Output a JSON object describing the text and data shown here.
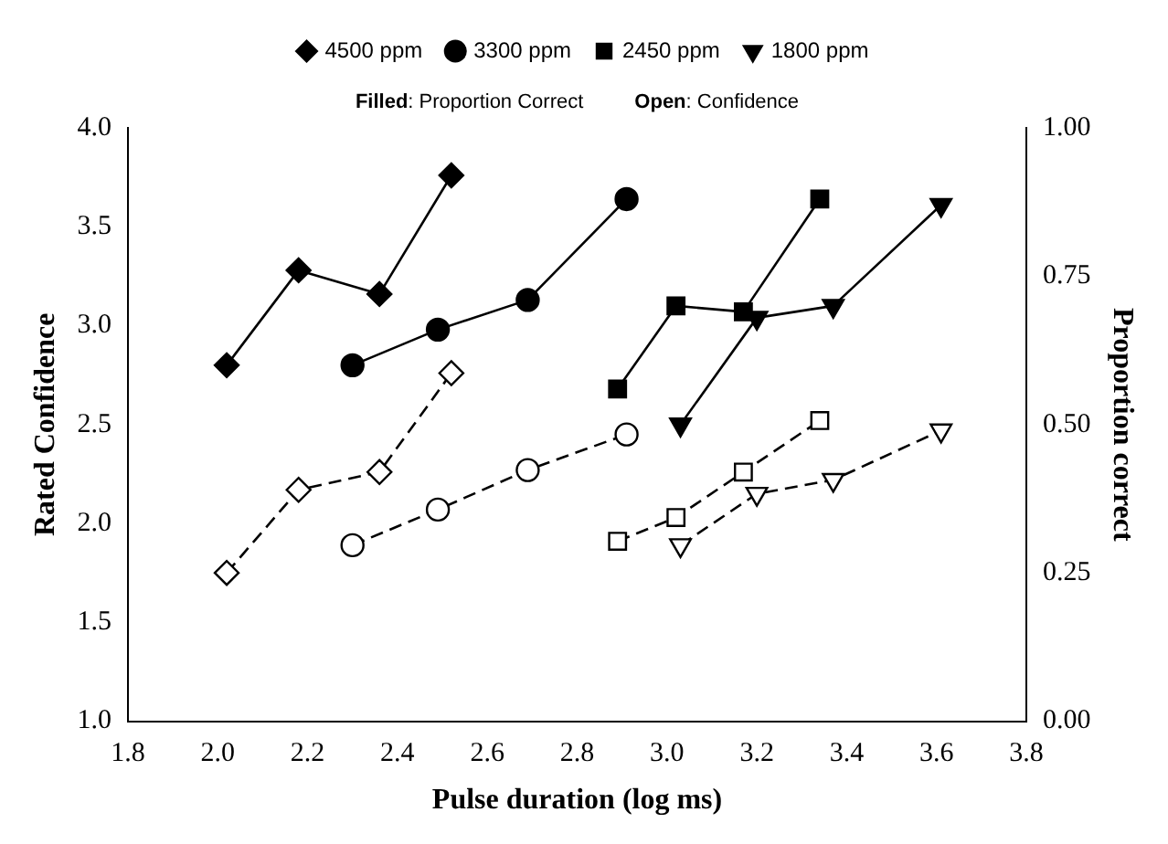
{
  "chart_data": {
    "type": "line",
    "xlabel": "Pulse duration (log ms)",
    "ylabel": "Rated Confidence",
    "y2label": "Proportion correct",
    "annotations": [
      "Filled: Proportion Correct",
      "Open: Confidence"
    ],
    "xlim": [
      1.8,
      3.8
    ],
    "xticks": [
      1.8,
      {
        "value": 2.0,
        "label": "2.0"
      },
      2.2,
      2.4,
      2.6,
      2.8,
      {
        "value": 3.0,
        "label": "3.0"
      },
      3.2,
      3.4,
      3.6,
      3.8
    ],
    "ylim": [
      1.0,
      4.0
    ],
    "yticks": [
      {
        "value": 1.0,
        "label": "1.0"
      },
      1.5,
      {
        "value": 2.0,
        "label": "2.0"
      },
      2.5,
      {
        "value": 3.0,
        "label": "3.0"
      },
      3.5,
      {
        "value": 4.0,
        "label": "4.0"
      }
    ],
    "y2lim": [
      0,
      1
    ],
    "y2ticks": [
      {
        "value": 0,
        "label": "0.00"
      },
      {
        "value": 0.25,
        "label": "0.25"
      },
      {
        "value": 0.5,
        "label": "0.50"
      },
      {
        "value": 0.75,
        "label": "0.75"
      },
      {
        "value": 1,
        "label": "1.00"
      }
    ],
    "grid": false,
    "legend": "top",
    "series": [
      {
        "name": "4500 ppm",
        "color": "#000000",
        "marker": "diamond",
        "line_style": "solid",
        "axis": "y2",
        "x": [
          2.02,
          2.18,
          2.36,
          2.52
        ],
        "values": [
          0.6,
          0.76,
          0.72,
          0.92
        ]
      },
      {
        "name": "3300 ppm",
        "color": "#000000",
        "marker": "circle",
        "line_style": "solid",
        "axis": "y2",
        "x": [
          2.3,
          2.49,
          2.69,
          2.91
        ],
        "values": [
          0.6,
          0.66,
          0.71,
          0.88
        ]
      },
      {
        "name": "2450 ppm",
        "color": "#000000",
        "marker": "square",
        "line_style": "solid",
        "axis": "y2",
        "x": [
          2.89,
          3.02,
          3.17,
          3.34
        ],
        "values": [
          0.56,
          0.7,
          0.69,
          0.88
        ]
      },
      {
        "name": "1800 ppm",
        "color": "#000000",
        "marker": "triangle",
        "line_style": "solid",
        "axis": "y2",
        "x": [
          3.03,
          3.2,
          3.37,
          3.61
        ],
        "values": [
          0.5,
          0.68,
          0.7,
          0.87
        ]
      },
      {
        "color": "#000000",
        "marker": "diamond",
        "line_style": "dashed",
        "x": [
          2.02,
          2.18,
          2.36,
          2.52
        ],
        "values": [
          1.75,
          2.17,
          2.26,
          2.76
        ]
      },
      {
        "color": "#000000",
        "marker": "circle",
        "line_style": "dashed",
        "x": [
          2.3,
          2.49,
          2.69,
          2.91
        ],
        "values": [
          1.89,
          2.07,
          2.27,
          2.45
        ]
      },
      {
        "color": "#000000",
        "marker": "square",
        "line_style": "dashed",
        "x": [
          2.89,
          3.02,
          3.17,
          3.34
        ],
        "values": [
          1.91,
          2.03,
          2.26,
          2.52
        ]
      },
      {
        "color": "#000000",
        "marker": "triangle",
        "line_style": "dashed",
        "x": [
          3.03,
          3.2,
          3.37,
          3.61
        ],
        "values": [
          1.89,
          2.15,
          2.22,
          2.47
        ]
      }
    ]
  }
}
